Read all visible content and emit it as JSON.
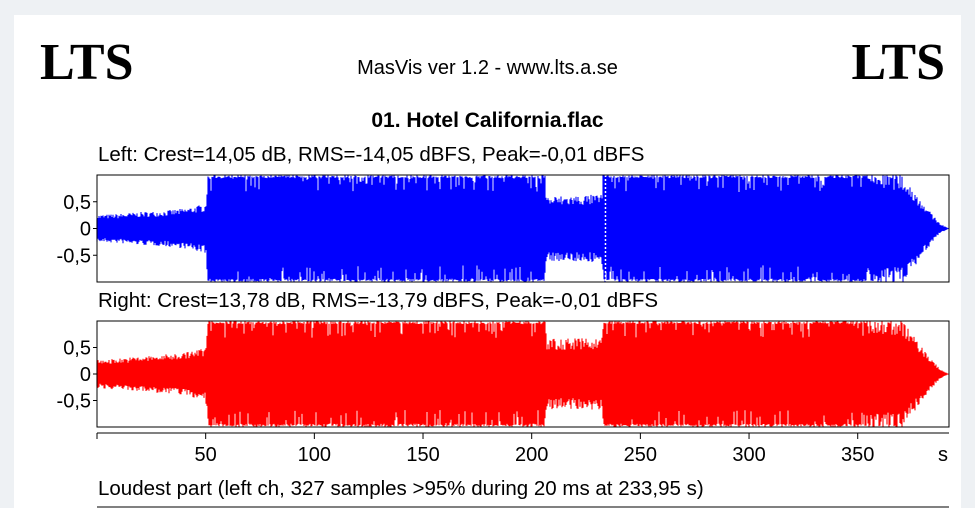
{
  "logos": {
    "left": "LTS",
    "right": "LTS"
  },
  "app_title": "MasVis ver 1.2 - www.lts.a.se",
  "file_title": "01. Hotel California.flac",
  "colors": {
    "left_channel": "#0000ff",
    "right_channel": "#ff0000",
    "panel": "#ffffff",
    "background": "#eef1f4"
  },
  "chart_data": [
    {
      "type": "area",
      "title": "Left: Crest=14,05 dB, RMS=-14,05 dBFS, Peak=-0,01 dBFS",
      "xlabel": "s",
      "xlim": [
        0,
        392
      ],
      "ylim": [
        -1,
        1
      ],
      "yticks": [
        0.5,
        0,
        -0.5
      ],
      "ytick_labels": [
        "0,5",
        "0",
        "-0,5"
      ],
      "marker_x": 233.95,
      "envelope": {
        "x": [
          0,
          10,
          20,
          30,
          40,
          50,
          51,
          60,
          100,
          150,
          200,
          206,
          207,
          232,
          233,
          240,
          300,
          350,
          370,
          378,
          384,
          388,
          392
        ],
        "values": [
          0.23,
          0.25,
          0.28,
          0.3,
          0.34,
          0.42,
          1.0,
          1.0,
          1.0,
          1.0,
          1.0,
          1.0,
          0.55,
          0.58,
          1.0,
          1.0,
          1.0,
          1.0,
          0.95,
          0.55,
          0.25,
          0.08,
          0.0
        ]
      }
    },
    {
      "type": "area",
      "title": "Right: Crest=13,78 dB, RMS=-13,79 dBFS, Peak=-0,01 dBFS",
      "xlabel": "s",
      "xlim": [
        0,
        392
      ],
      "ylim": [
        -1,
        1
      ],
      "yticks": [
        0.5,
        0,
        -0.5
      ],
      "ytick_labels": [
        "0,5",
        "0",
        "-0,5"
      ],
      "x_ticks": [
        50,
        100,
        150,
        200,
        250,
        300,
        350
      ],
      "x_tick_labels": [
        "50",
        "100",
        "150",
        "200",
        "250",
        "300",
        "350"
      ],
      "envelope": {
        "x": [
          0,
          10,
          20,
          30,
          40,
          50,
          51,
          60,
          100,
          150,
          200,
          206,
          207,
          232,
          233,
          240,
          300,
          350,
          370,
          378,
          384,
          388,
          392
        ],
        "values": [
          0.24,
          0.27,
          0.3,
          0.33,
          0.37,
          0.45,
          1.0,
          1.0,
          1.0,
          1.0,
          1.0,
          1.0,
          0.6,
          0.62,
          1.0,
          1.0,
          1.0,
          1.0,
          0.95,
          0.55,
          0.25,
          0.08,
          0.0
        ]
      }
    }
  ],
  "loudest_label": "Loudest part (left  ch, 327 samples >95% during 20 ms at 233,95 s)"
}
